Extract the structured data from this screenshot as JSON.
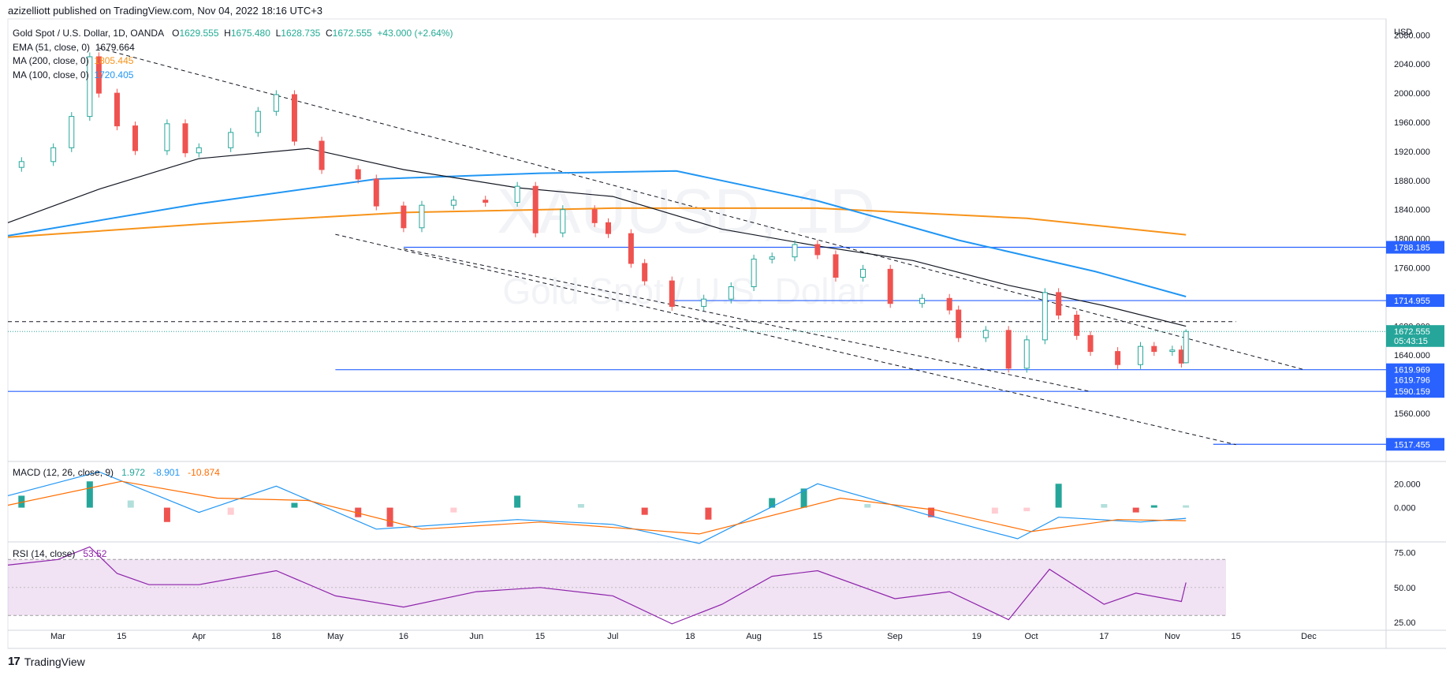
{
  "publisher_line": "azizelliott published on TradingView.com, Nov 04, 2022 18:16 UTC+3",
  "legend": {
    "symbol": "Gold Spot / U.S. Dollar, 1D, OANDA",
    "o_label": "O",
    "o": "1629.555",
    "h_label": "H",
    "h": "1675.480",
    "l_label": "L",
    "l": "1628.735",
    "c_label": "C",
    "c": "1672.555",
    "change": "+43.000 (+2.64%)",
    "ema": {
      "label": "EMA (51, close, 0)",
      "value": "1679.664"
    },
    "ma200": {
      "label": "MA (200, close, 0)",
      "value": "1805.445"
    },
    "ma100": {
      "label": "MA (100, close, 0)",
      "value": "1720.405"
    }
  },
  "macd_legend": {
    "label": "MACD (12, 26, close, 9)",
    "hist": "1.972",
    "macd": "-8.901",
    "signal": "-10.874"
  },
  "rsi_legend": {
    "label": "RSI (14, close)",
    "value": "53.52"
  },
  "watermark": {
    "line1": "XAUUSD, 1D",
    "line2": "Gold Spot / U.S. Dollar"
  },
  "footer": {
    "logo": "17",
    "brand": "TradingView"
  },
  "colors": {
    "up": "#26a69a",
    "down": "#ef5350",
    "ema": "#131722",
    "ma200": "#f7931a",
    "ma100": "#2196f3",
    "hline": "#2962ff",
    "rsi": "#8e24aa",
    "macd": "#2196f3",
    "signal": "#ff6d00"
  },
  "chart_data": {
    "type": "candlestick",
    "y_axis_unit": "USD",
    "price_ticks": [
      2080,
      2040,
      2000,
      1960,
      1920,
      1880,
      1840,
      1800,
      1760,
      1720,
      1680,
      1640,
      1560
    ],
    "price_tick_labels": [
      "2080.000",
      "2040.000",
      "2000.000",
      "1960.000",
      "1920.000",
      "1880.000",
      "1840.000",
      "1800.000",
      "1760.000",
      "1720.000",
      "1680.000",
      "1640.000",
      "1560.000"
    ],
    "ylim": [
      1495,
      2102
    ],
    "x_range": [
      "2022-02-18",
      "2022-12-18"
    ],
    "x_ticks": [
      {
        "date": "2022-03-01",
        "label": "Mar"
      },
      {
        "date": "2022-03-15",
        "label": "15"
      },
      {
        "date": "2022-04-01",
        "label": "Apr"
      },
      {
        "date": "2022-04-18",
        "label": "18"
      },
      {
        "date": "2022-05-01",
        "label": "May"
      },
      {
        "date": "2022-05-16",
        "label": "16"
      },
      {
        "date": "2022-06-01",
        "label": "Jun"
      },
      {
        "date": "2022-06-15",
        "label": "15"
      },
      {
        "date": "2022-07-01",
        "label": "Jul"
      },
      {
        "date": "2022-07-18",
        "label": "18"
      },
      {
        "date": "2022-08-01",
        "label": "Aug"
      },
      {
        "date": "2022-08-15",
        "label": "15"
      },
      {
        "date": "2022-09-01",
        "label": "Sep"
      },
      {
        "date": "2022-09-19",
        "label": "19"
      },
      {
        "date": "2022-10-01",
        "label": "Oct"
      },
      {
        "date": "2022-10-17",
        "label": "17"
      },
      {
        "date": "2022-11-01",
        "label": "Nov"
      },
      {
        "date": "2022-11-15",
        "label": "15"
      },
      {
        "date": "2022-12-01",
        "label": "Dec"
      }
    ],
    "closes": [
      {
        "d": "2022-02-21",
        "c": 1906
      },
      {
        "d": "2022-02-28",
        "c": 1925
      },
      {
        "d": "2022-03-04",
        "c": 1968
      },
      {
        "d": "2022-03-08",
        "c": 2050
      },
      {
        "d": "2022-03-10",
        "c": 2000
      },
      {
        "d": "2022-03-14",
        "c": 1955
      },
      {
        "d": "2022-03-18",
        "c": 1921
      },
      {
        "d": "2022-03-25",
        "c": 1958
      },
      {
        "d": "2022-03-29",
        "c": 1918
      },
      {
        "d": "2022-04-01",
        "c": 1925
      },
      {
        "d": "2022-04-08",
        "c": 1946
      },
      {
        "d": "2022-04-14",
        "c": 1975
      },
      {
        "d": "2022-04-18",
        "c": 1998
      },
      {
        "d": "2022-04-22",
        "c": 1934
      },
      {
        "d": "2022-04-28",
        "c": 1895
      },
      {
        "d": "2022-05-06",
        "c": 1882
      },
      {
        "d": "2022-05-10",
        "c": 1845
      },
      {
        "d": "2022-05-16",
        "c": 1815
      },
      {
        "d": "2022-05-20",
        "c": 1846
      },
      {
        "d": "2022-05-27",
        "c": 1853
      },
      {
        "d": "2022-06-03",
        "c": 1850
      },
      {
        "d": "2022-06-10",
        "c": 1872
      },
      {
        "d": "2022-06-14",
        "c": 1808
      },
      {
        "d": "2022-06-20",
        "c": 1840
      },
      {
        "d": "2022-06-27",
        "c": 1822
      },
      {
        "d": "2022-06-30",
        "c": 1807
      },
      {
        "d": "2022-07-05",
        "c": 1766
      },
      {
        "d": "2022-07-08",
        "c": 1742
      },
      {
        "d": "2022-07-14",
        "c": 1707
      },
      {
        "d": "2022-07-21",
        "c": 1717
      },
      {
        "d": "2022-07-27",
        "c": 1734
      },
      {
        "d": "2022-08-01",
        "c": 1772
      },
      {
        "d": "2022-08-05",
        "c": 1775
      },
      {
        "d": "2022-08-10",
        "c": 1792
      },
      {
        "d": "2022-08-15",
        "c": 1778
      },
      {
        "d": "2022-08-19",
        "c": 1747
      },
      {
        "d": "2022-08-25",
        "c": 1758
      },
      {
        "d": "2022-08-31",
        "c": 1711
      },
      {
        "d": "2022-09-07",
        "c": 1718
      },
      {
        "d": "2022-09-13",
        "c": 1702
      },
      {
        "d": "2022-09-15",
        "c": 1664
      },
      {
        "d": "2022-09-21",
        "c": 1674
      },
      {
        "d": "2022-09-26",
        "c": 1622
      },
      {
        "d": "2022-09-30",
        "c": 1661
      },
      {
        "d": "2022-10-04",
        "c": 1726
      },
      {
        "d": "2022-10-07",
        "c": 1695
      },
      {
        "d": "2022-10-11",
        "c": 1667
      },
      {
        "d": "2022-10-14",
        "c": 1645
      },
      {
        "d": "2022-10-20",
        "c": 1627
      },
      {
        "d": "2022-10-25",
        "c": 1652
      },
      {
        "d": "2022-10-28",
        "c": 1645
      },
      {
        "d": "2022-11-01",
        "c": 1647
      },
      {
        "d": "2022-11-03",
        "c": 1629
      },
      {
        "d": "2022-11-04",
        "c": 1672.555
      }
    ],
    "last_candle": {
      "d": "2022-11-04",
      "o": 1629.555,
      "h": 1675.48,
      "l": 1628.735,
      "c": 1672.555
    },
    "ema51": [
      {
        "d": "2022-02-18",
        "v": 1822
      },
      {
        "d": "2022-03-10",
        "v": 1868
      },
      {
        "d": "2022-04-01",
        "v": 1910
      },
      {
        "d": "2022-04-25",
        "v": 1924
      },
      {
        "d": "2022-05-16",
        "v": 1895
      },
      {
        "d": "2022-06-10",
        "v": 1870
      },
      {
        "d": "2022-07-01",
        "v": 1858
      },
      {
        "d": "2022-07-25",
        "v": 1813
      },
      {
        "d": "2022-08-15",
        "v": 1790
      },
      {
        "d": "2022-09-05",
        "v": 1770
      },
      {
        "d": "2022-09-26",
        "v": 1736
      },
      {
        "d": "2022-10-17",
        "v": 1708
      },
      {
        "d": "2022-11-04",
        "v": 1679.664
      }
    ],
    "ma200": [
      {
        "d": "2022-02-18",
        "v": 1802
      },
      {
        "d": "2022-04-01",
        "v": 1820
      },
      {
        "d": "2022-05-16",
        "v": 1836
      },
      {
        "d": "2022-07-01",
        "v": 1842
      },
      {
        "d": "2022-08-15",
        "v": 1842
      },
      {
        "d": "2022-09-30",
        "v": 1828
      },
      {
        "d": "2022-11-04",
        "v": 1805.445
      }
    ],
    "ma100": [
      {
        "d": "2022-02-18",
        "v": 1804
      },
      {
        "d": "2022-04-01",
        "v": 1848
      },
      {
        "d": "2022-05-10",
        "v": 1882
      },
      {
        "d": "2022-06-15",
        "v": 1890
      },
      {
        "d": "2022-07-15",
        "v": 1893
      },
      {
        "d": "2022-08-15",
        "v": 1852
      },
      {
        "d": "2022-09-15",
        "v": 1798
      },
      {
        "d": "2022-10-15",
        "v": 1755
      },
      {
        "d": "2022-11-04",
        "v": 1720.405
      }
    ],
    "horizontal_levels": [
      {
        "label": "1788.185",
        "v": 1788.185,
        "from": "2022-05-16"
      },
      {
        "label": "1714.955",
        "v": 1714.955,
        "from": "2022-07-14"
      },
      {
        "label": "1619.969",
        "v": 1619.969,
        "from": "2022-05-01"
      },
      {
        "label": "1590.159",
        "v": 1590.159,
        "from": "2022-02-18"
      },
      {
        "label": "1517.455",
        "v": 1517.455,
        "from": "2022-11-10"
      }
    ],
    "price_labels": [
      {
        "label": "1672.555",
        "v": 1672.555
      },
      {
        "label": "05:43:15",
        "v": 1660
      },
      {
        "label": "1619.796",
        "v": 1606
      }
    ],
    "dashed_lines": [
      {
        "from": {
          "d": "2022-03-10",
          "v": 2062
        },
        "to": {
          "d": "2022-11-30",
          "v": 1620
        }
      },
      {
        "from": {
          "d": "2022-05-01",
          "v": 1806
        },
        "to": {
          "d": "2022-11-15",
          "v": 1517
        }
      },
      {
        "from": {
          "d": "2022-05-16",
          "v": 1786
        },
        "to": {
          "d": "2022-10-14",
          "v": 1590
        }
      },
      {
        "from": {
          "d": "2022-02-18",
          "v": 1686
        },
        "to": {
          "d": "2022-11-15",
          "v": 1686
        }
      }
    ],
    "macd_ticks": [
      {
        "v": 20,
        "label": "20.000"
      },
      {
        "v": 0,
        "label": "0.000"
      }
    ],
    "macd_ylim": [
      -28,
      38
    ],
    "macd_hist": [
      {
        "d": "2022-02-21",
        "v": 10
      },
      {
        "d": "2022-03-08",
        "v": 22
      },
      {
        "d": "2022-03-17",
        "v": 6
      },
      {
        "d": "2022-03-25",
        "v": -12
      },
      {
        "d": "2022-04-08",
        "v": -6
      },
      {
        "d": "2022-04-22",
        "v": 4
      },
      {
        "d": "2022-05-06",
        "v": -8
      },
      {
        "d": "2022-05-13",
        "v": -16
      },
      {
        "d": "2022-05-27",
        "v": -4
      },
      {
        "d": "2022-06-10",
        "v": 10
      },
      {
        "d": "2022-06-24",
        "v": 3
      },
      {
        "d": "2022-07-08",
        "v": -6
      },
      {
        "d": "2022-07-22",
        "v": -10
      },
      {
        "d": "2022-08-05",
        "v": 8
      },
      {
        "d": "2022-08-12",
        "v": 16
      },
      {
        "d": "2022-08-26",
        "v": 3
      },
      {
        "d": "2022-09-09",
        "v": -8
      },
      {
        "d": "2022-09-23",
        "v": -5
      },
      {
        "d": "2022-09-30",
        "v": -3
      },
      {
        "d": "2022-10-07",
        "v": 20
      },
      {
        "d": "2022-10-17",
        "v": 3
      },
      {
        "d": "2022-10-24",
        "v": -4
      },
      {
        "d": "2022-10-28",
        "v": 2
      },
      {
        "d": "2022-11-04",
        "v": 1.972
      }
    ],
    "macd_line": [
      {
        "d": "2022-02-18",
        "v": 10
      },
      {
        "d": "2022-03-10",
        "v": 30
      },
      {
        "d": "2022-04-01",
        "v": -4
      },
      {
        "d": "2022-04-18",
        "v": 18
      },
      {
        "d": "2022-05-10",
        "v": -18
      },
      {
        "d": "2022-06-10",
        "v": -10
      },
      {
        "d": "2022-07-01",
        "v": -14
      },
      {
        "d": "2022-07-20",
        "v": -30
      },
      {
        "d": "2022-08-15",
        "v": 20
      },
      {
        "d": "2022-09-10",
        "v": -8
      },
      {
        "d": "2022-09-28",
        "v": -26
      },
      {
        "d": "2022-10-07",
        "v": -8
      },
      {
        "d": "2022-10-25",
        "v": -12
      },
      {
        "d": "2022-11-04",
        "v": -8.901
      }
    ],
    "signal_line": [
      {
        "d": "2022-02-18",
        "v": 2
      },
      {
        "d": "2022-03-15",
        "v": 22
      },
      {
        "d": "2022-04-05",
        "v": 8
      },
      {
        "d": "2022-04-25",
        "v": 6
      },
      {
        "d": "2022-05-20",
        "v": -18
      },
      {
        "d": "2022-06-15",
        "v": -12
      },
      {
        "d": "2022-07-20",
        "v": -22
      },
      {
        "d": "2022-08-20",
        "v": 8
      },
      {
        "d": "2022-09-10",
        "v": -2
      },
      {
        "d": "2022-10-01",
        "v": -20
      },
      {
        "d": "2022-10-20",
        "v": -10
      },
      {
        "d": "2022-11-04",
        "v": -10.874
      }
    ],
    "rsi_ticks": [
      {
        "v": 75,
        "label": "75.00"
      },
      {
        "v": 50,
        "label": "50.00"
      },
      {
        "v": 25,
        "label": "25.00"
      }
    ],
    "rsi_band": [
      30,
      70
    ],
    "rsi_ylim": [
      20,
      82
    ],
    "rsi": [
      {
        "d": "2022-02-18",
        "v": 66
      },
      {
        "d": "2022-03-01",
        "v": 70
      },
      {
        "d": "2022-03-08",
        "v": 79
      },
      {
        "d": "2022-03-14",
        "v": 60
      },
      {
        "d": "2022-03-21",
        "v": 52
      },
      {
        "d": "2022-04-01",
        "v": 52
      },
      {
        "d": "2022-04-18",
        "v": 62
      },
      {
        "d": "2022-05-01",
        "v": 44
      },
      {
        "d": "2022-05-16",
        "v": 36
      },
      {
        "d": "2022-06-01",
        "v": 47
      },
      {
        "d": "2022-06-15",
        "v": 50
      },
      {
        "d": "2022-07-01",
        "v": 44
      },
      {
        "d": "2022-07-14",
        "v": 24
      },
      {
        "d": "2022-07-25",
        "v": 38
      },
      {
        "d": "2022-08-05",
        "v": 58
      },
      {
        "d": "2022-08-15",
        "v": 62
      },
      {
        "d": "2022-09-01",
        "v": 42
      },
      {
        "d": "2022-09-13",
        "v": 47
      },
      {
        "d": "2022-09-26",
        "v": 27
      },
      {
        "d": "2022-10-05",
        "v": 63
      },
      {
        "d": "2022-10-17",
        "v": 38
      },
      {
        "d": "2022-10-24",
        "v": 46
      },
      {
        "d": "2022-11-03",
        "v": 40
      },
      {
        "d": "2022-11-04",
        "v": 53.52
      }
    ]
  }
}
